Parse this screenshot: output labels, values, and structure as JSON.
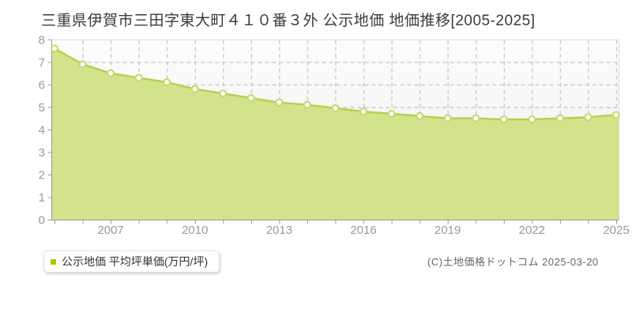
{
  "title": "三重県伊賀市三田字東大町４１０番３外 公示地価 地価推移[2005-2025]",
  "legend": {
    "label": "公示地価 平均坪単価(万円/坪)",
    "marker_color": "#a8c810"
  },
  "footer": {
    "copyright": "(C)土地価格ドットコム 2025-03-20"
  },
  "chart_data": {
    "type": "area",
    "title": "三重県伊賀市三田字東大町４１０番３外 公示地価 地価推移[2005-2025]",
    "series_name": "公示地価 平均坪単価(万円/坪)",
    "x": [
      2005,
      2006,
      2007,
      2008,
      2009,
      2010,
      2011,
      2012,
      2013,
      2014,
      2015,
      2016,
      2017,
      2018,
      2019,
      2020,
      2021,
      2022,
      2023,
      2024,
      2025
    ],
    "values": [
      7.6,
      6.9,
      6.5,
      6.3,
      6.1,
      5.8,
      5.6,
      5.4,
      5.2,
      5.1,
      4.95,
      4.8,
      4.7,
      4.6,
      4.5,
      4.5,
      4.45,
      4.45,
      4.5,
      4.55,
      4.65
    ],
    "xlabel": "",
    "ylabel": "",
    "ylim": [
      0,
      8
    ],
    "yticks": [
      0,
      1,
      2,
      3,
      4,
      5,
      6,
      7,
      8
    ],
    "xticks": [
      2007,
      2010,
      2013,
      2016,
      2019,
      2022,
      2025
    ],
    "grid": true,
    "legend_position": "bottom-left",
    "colors": {
      "line": "#b6d14f",
      "fill": "#d2e38c",
      "marker_fill": "#fffefa",
      "marker_stroke": "#c3d96c",
      "grid": "#cccccc",
      "axis": "#999999",
      "plot_border": "#dddddd",
      "tick_label": "#999999",
      "plot_bg_top": "#fdfdfd",
      "plot_bg_bottom": "#ececec"
    }
  }
}
